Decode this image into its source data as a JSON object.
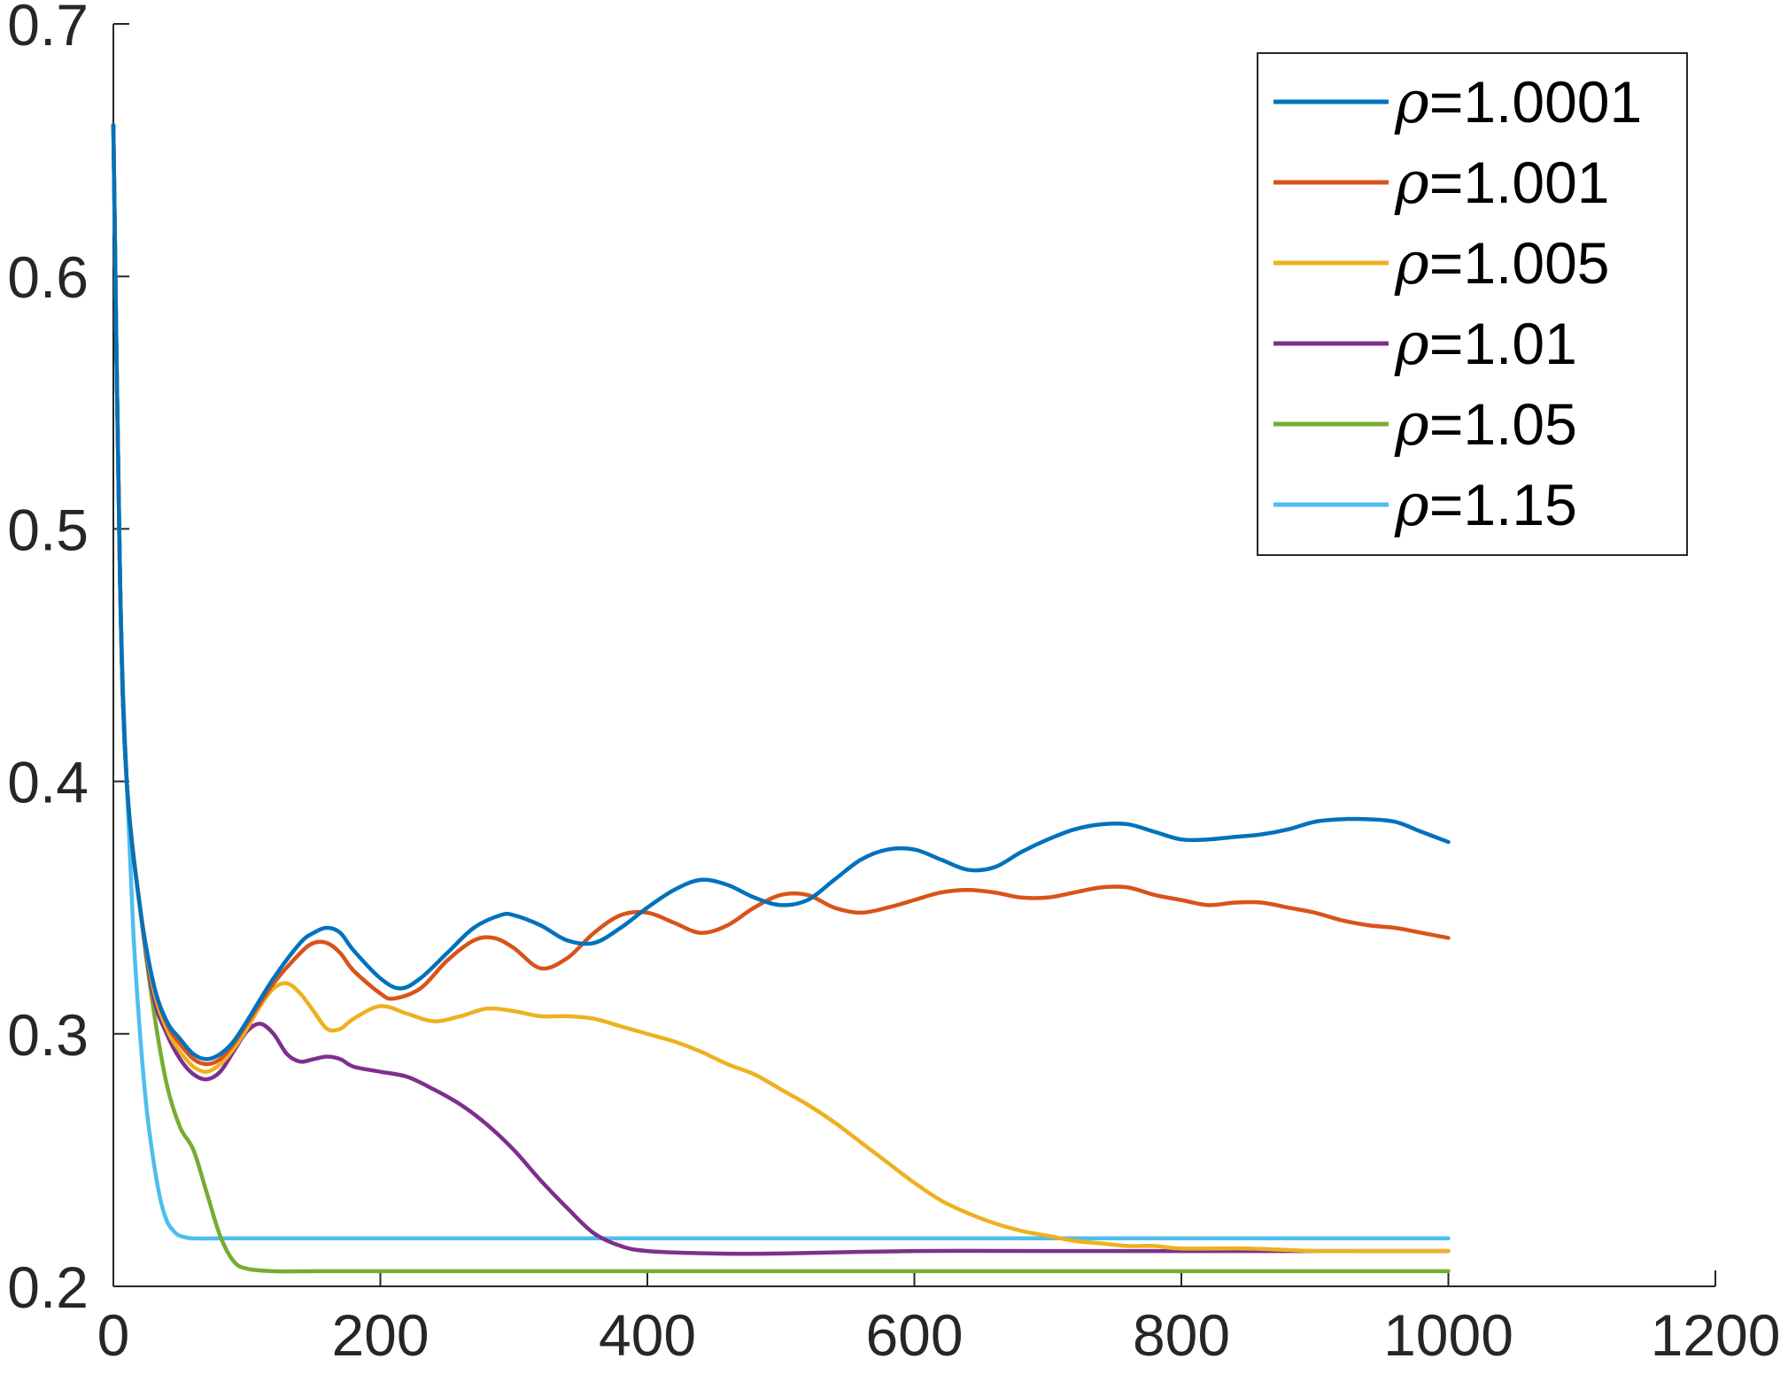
{
  "chart_data": {
    "type": "line",
    "title": "",
    "xlabel": "",
    "ylabel": "",
    "xlim": [
      0,
      1200
    ],
    "ylim": [
      0.2,
      0.7
    ],
    "xticks": [
      0,
      200,
      400,
      600,
      800,
      1000,
      1200
    ],
    "yticks": [
      0.2,
      0.3,
      0.4,
      0.5,
      0.6,
      0.7
    ],
    "xtick_labels": [
      "0",
      "200",
      "400",
      "600",
      "800",
      "1000",
      "1200"
    ],
    "ytick_labels": [
      "0.2",
      "0.3",
      "0.4",
      "0.5",
      "0.6",
      "0.7"
    ],
    "grid": false,
    "legend_position": "top-right",
    "series": [
      {
        "name": "ρ=1.0001",
        "color": "#0072BD",
        "points": [
          [
            0,
            0.66
          ],
          [
            5,
            0.48
          ],
          [
            10,
            0.4
          ],
          [
            20,
            0.35
          ],
          [
            30,
            0.32
          ],
          [
            40,
            0.305
          ],
          [
            50,
            0.298
          ],
          [
            60,
            0.292
          ],
          [
            70,
            0.29
          ],
          [
            80,
            0.292
          ],
          [
            90,
            0.297
          ],
          [
            100,
            0.305
          ],
          [
            120,
            0.322
          ],
          [
            140,
            0.336
          ],
          [
            150,
            0.34
          ],
          [
            160,
            0.342
          ],
          [
            170,
            0.34
          ],
          [
            180,
            0.333
          ],
          [
            200,
            0.322
          ],
          [
            215,
            0.318
          ],
          [
            230,
            0.322
          ],
          [
            250,
            0.332
          ],
          [
            270,
            0.342
          ],
          [
            290,
            0.347
          ],
          [
            300,
            0.347
          ],
          [
            320,
            0.343
          ],
          [
            340,
            0.337
          ],
          [
            360,
            0.336
          ],
          [
            380,
            0.342
          ],
          [
            400,
            0.35
          ],
          [
            420,
            0.357
          ],
          [
            440,
            0.361
          ],
          [
            460,
            0.359
          ],
          [
            480,
            0.354
          ],
          [
            500,
            0.351
          ],
          [
            520,
            0.353
          ],
          [
            540,
            0.361
          ],
          [
            560,
            0.369
          ],
          [
            580,
            0.373
          ],
          [
            600,
            0.373
          ],
          [
            620,
            0.369
          ],
          [
            640,
            0.365
          ],
          [
            660,
            0.366
          ],
          [
            680,
            0.372
          ],
          [
            700,
            0.377
          ],
          [
            720,
            0.381
          ],
          [
            740,
            0.383
          ],
          [
            760,
            0.383
          ],
          [
            780,
            0.38
          ],
          [
            800,
            0.377
          ],
          [
            820,
            0.377
          ],
          [
            840,
            0.378
          ],
          [
            860,
            0.379
          ],
          [
            880,
            0.381
          ],
          [
            900,
            0.384
          ],
          [
            920,
            0.385
          ],
          [
            940,
            0.385
          ],
          [
            960,
            0.384
          ],
          [
            980,
            0.38
          ],
          [
            1000,
            0.376
          ]
        ]
      },
      {
        "name": "ρ=1.001",
        "color": "#D95319",
        "points": [
          [
            0,
            0.66
          ],
          [
            5,
            0.48
          ],
          [
            10,
            0.4
          ],
          [
            20,
            0.35
          ],
          [
            30,
            0.32
          ],
          [
            40,
            0.304
          ],
          [
            50,
            0.296
          ],
          [
            60,
            0.29
          ],
          [
            70,
            0.288
          ],
          [
            80,
            0.29
          ],
          [
            90,
            0.296
          ],
          [
            100,
            0.304
          ],
          [
            120,
            0.32
          ],
          [
            140,
            0.332
          ],
          [
            150,
            0.336
          ],
          [
            160,
            0.336
          ],
          [
            170,
            0.332
          ],
          [
            180,
            0.325
          ],
          [
            200,
            0.316
          ],
          [
            210,
            0.314
          ],
          [
            230,
            0.318
          ],
          [
            250,
            0.329
          ],
          [
            270,
            0.337
          ],
          [
            285,
            0.338
          ],
          [
            300,
            0.334
          ],
          [
            320,
            0.326
          ],
          [
            340,
            0.33
          ],
          [
            360,
            0.34
          ],
          [
            380,
            0.347
          ],
          [
            400,
            0.348
          ],
          [
            420,
            0.344
          ],
          [
            440,
            0.34
          ],
          [
            460,
            0.343
          ],
          [
            480,
            0.35
          ],
          [
            500,
            0.355
          ],
          [
            520,
            0.355
          ],
          [
            540,
            0.35
          ],
          [
            560,
            0.348
          ],
          [
            580,
            0.35
          ],
          [
            600,
            0.353
          ],
          [
            620,
            0.356
          ],
          [
            640,
            0.357
          ],
          [
            660,
            0.356
          ],
          [
            680,
            0.354
          ],
          [
            700,
            0.354
          ],
          [
            720,
            0.356
          ],
          [
            740,
            0.358
          ],
          [
            760,
            0.358
          ],
          [
            780,
            0.355
          ],
          [
            800,
            0.353
          ],
          [
            820,
            0.351
          ],
          [
            840,
            0.352
          ],
          [
            860,
            0.352
          ],
          [
            880,
            0.35
          ],
          [
            900,
            0.348
          ],
          [
            920,
            0.345
          ],
          [
            940,
            0.343
          ],
          [
            960,
            0.342
          ],
          [
            980,
            0.34
          ],
          [
            1000,
            0.338
          ]
        ]
      },
      {
        "name": "ρ=1.005",
        "color": "#EDB120",
        "points": [
          [
            0,
            0.66
          ],
          [
            5,
            0.48
          ],
          [
            10,
            0.4
          ],
          [
            20,
            0.35
          ],
          [
            30,
            0.318
          ],
          [
            40,
            0.302
          ],
          [
            50,
            0.293
          ],
          [
            60,
            0.287
          ],
          [
            70,
            0.285
          ],
          [
            80,
            0.288
          ],
          [
            90,
            0.294
          ],
          [
            100,
            0.302
          ],
          [
            110,
            0.311
          ],
          [
            120,
            0.318
          ],
          [
            130,
            0.32
          ],
          [
            140,
            0.316
          ],
          [
            150,
            0.309
          ],
          [
            160,
            0.302
          ],
          [
            170,
            0.302
          ],
          [
            180,
            0.306
          ],
          [
            200,
            0.311
          ],
          [
            220,
            0.308
          ],
          [
            240,
            0.305
          ],
          [
            260,
            0.307
          ],
          [
            280,
            0.31
          ],
          [
            300,
            0.309
          ],
          [
            320,
            0.307
          ],
          [
            340,
            0.307
          ],
          [
            360,
            0.306
          ],
          [
            380,
            0.303
          ],
          [
            400,
            0.3
          ],
          [
            420,
            0.297
          ],
          [
            440,
            0.293
          ],
          [
            460,
            0.288
          ],
          [
            480,
            0.284
          ],
          [
            500,
            0.278
          ],
          [
            520,
            0.272
          ],
          [
            540,
            0.265
          ],
          [
            560,
            0.257
          ],
          [
            580,
            0.249
          ],
          [
            600,
            0.241
          ],
          [
            620,
            0.234
          ],
          [
            640,
            0.229
          ],
          [
            660,
            0.225
          ],
          [
            680,
            0.222
          ],
          [
            700,
            0.22
          ],
          [
            720,
            0.218
          ],
          [
            740,
            0.217
          ],
          [
            760,
            0.216
          ],
          [
            780,
            0.216
          ],
          [
            800,
            0.215
          ],
          [
            850,
            0.215
          ],
          [
            900,
            0.214
          ],
          [
            950,
            0.214
          ],
          [
            1000,
            0.214
          ]
        ]
      },
      {
        "name": "ρ=1.01",
        "color": "#7E2F8E",
        "points": [
          [
            0,
            0.66
          ],
          [
            5,
            0.48
          ],
          [
            10,
            0.4
          ],
          [
            20,
            0.35
          ],
          [
            30,
            0.315
          ],
          [
            40,
            0.3
          ],
          [
            50,
            0.29
          ],
          [
            60,
            0.284
          ],
          [
            70,
            0.282
          ],
          [
            80,
            0.285
          ],
          [
            90,
            0.293
          ],
          [
            100,
            0.301
          ],
          [
            110,
            0.304
          ],
          [
            120,
            0.3
          ],
          [
            130,
            0.292
          ],
          [
            140,
            0.289
          ],
          [
            150,
            0.29
          ],
          [
            160,
            0.291
          ],
          [
            170,
            0.29
          ],
          [
            180,
            0.287
          ],
          [
            200,
            0.285
          ],
          [
            220,
            0.283
          ],
          [
            240,
            0.278
          ],
          [
            260,
            0.272
          ],
          [
            280,
            0.264
          ],
          [
            300,
            0.254
          ],
          [
            320,
            0.242
          ],
          [
            340,
            0.231
          ],
          [
            360,
            0.221
          ],
          [
            380,
            0.216
          ],
          [
            400,
            0.214
          ],
          [
            450,
            0.213
          ],
          [
            500,
            0.213
          ],
          [
            600,
            0.214
          ],
          [
            700,
            0.214
          ],
          [
            800,
            0.214
          ],
          [
            900,
            0.214
          ],
          [
            1000,
            0.214
          ]
        ]
      },
      {
        "name": "ρ=1.05",
        "color": "#77AC30",
        "points": [
          [
            0,
            0.66
          ],
          [
            5,
            0.48
          ],
          [
            10,
            0.4
          ],
          [
            20,
            0.35
          ],
          [
            30,
            0.31
          ],
          [
            40,
            0.28
          ],
          [
            50,
            0.263
          ],
          [
            60,
            0.254
          ],
          [
            70,
            0.237
          ],
          [
            80,
            0.22
          ],
          [
            90,
            0.21
          ],
          [
            100,
            0.207
          ],
          [
            120,
            0.206
          ],
          [
            150,
            0.206
          ],
          [
            200,
            0.206
          ],
          [
            300,
            0.206
          ],
          [
            400,
            0.206
          ],
          [
            500,
            0.206
          ],
          [
            600,
            0.206
          ],
          [
            700,
            0.206
          ],
          [
            800,
            0.206
          ],
          [
            900,
            0.206
          ],
          [
            1000,
            0.206
          ]
        ]
      },
      {
        "name": "ρ=1.15",
        "color": "#4DBEEE",
        "points": [
          [
            0,
            0.66
          ],
          [
            5,
            0.48
          ],
          [
            10,
            0.4
          ],
          [
            15,
            0.34
          ],
          [
            20,
            0.3
          ],
          [
            25,
            0.27
          ],
          [
            30,
            0.25
          ],
          [
            35,
            0.235
          ],
          [
            40,
            0.226
          ],
          [
            45,
            0.222
          ],
          [
            50,
            0.22
          ],
          [
            60,
            0.219
          ],
          [
            80,
            0.219
          ],
          [
            100,
            0.219
          ],
          [
            200,
            0.219
          ],
          [
            300,
            0.219
          ],
          [
            400,
            0.219
          ],
          [
            500,
            0.219
          ],
          [
            600,
            0.219
          ],
          [
            700,
            0.219
          ],
          [
            800,
            0.219
          ],
          [
            900,
            0.219
          ],
          [
            1000,
            0.219
          ]
        ]
      }
    ]
  }
}
